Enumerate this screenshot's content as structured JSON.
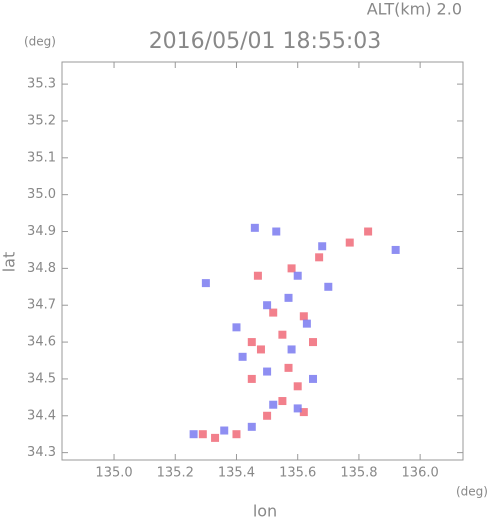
{
  "chart_data": {
    "type": "scatter",
    "title": "2016/05/01 18:55:03",
    "subtitle": "ALT(km) 2.0",
    "y_unit": "(deg)",
    "x_unit": "(deg)",
    "xlabel": "lon",
    "ylabel": "lat",
    "xlim": [
      134.83,
      136.14
    ],
    "ylim": [
      34.28,
      35.36
    ],
    "xticks": [
      {
        "value": 135.0,
        "label": "135.0"
      },
      135.2,
      135.4,
      135.6,
      135.8,
      {
        "value": 136.0,
        "label": "136.0"
      }
    ],
    "yticks": [
      34.3,
      34.4,
      34.5,
      34.6,
      34.7,
      34.8,
      34.9,
      {
        "value": 35.0,
        "label": "35.0"
      },
      35.1,
      35.2,
      35.3
    ],
    "series": [
      {
        "color": "#f06a78",
        "x": [
          135.29,
          135.33,
          135.4,
          135.5,
          135.55,
          135.6,
          135.57,
          135.48,
          135.55,
          135.62,
          135.52,
          135.45,
          135.58,
          135.67,
          135.77,
          135.83,
          135.47,
          135.62,
          135.45,
          135.65
        ],
        "values": [
          34.35,
          34.34,
          34.35,
          34.4,
          34.44,
          34.48,
          34.53,
          34.58,
          34.62,
          34.67,
          34.68,
          34.6,
          34.8,
          34.83,
          34.87,
          34.9,
          34.78,
          34.41,
          34.5,
          34.6
        ]
      },
      {
        "color": "#7a7af0",
        "x": [
          135.26,
          135.36,
          135.45,
          135.52,
          135.6,
          135.65,
          135.5,
          135.42,
          135.58,
          135.4,
          135.5,
          135.57,
          135.63,
          135.46,
          135.53,
          135.68,
          135.6,
          135.92,
          135.3,
          135.7
        ],
        "values": [
          34.35,
          34.36,
          34.37,
          34.43,
          34.42,
          34.5,
          34.52,
          34.56,
          34.58,
          34.64,
          34.7,
          34.72,
          34.65,
          34.91,
          34.9,
          34.86,
          34.78,
          34.85,
          34.76,
          34.75
        ]
      }
    ]
  }
}
